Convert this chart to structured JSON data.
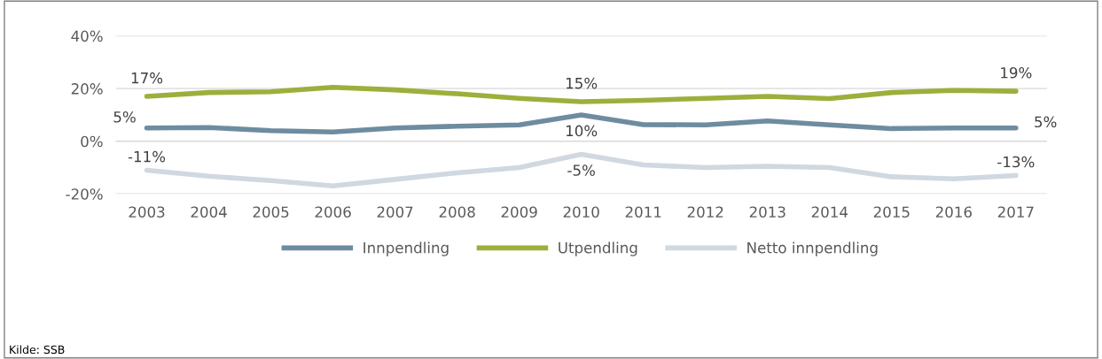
{
  "chart_data": {
    "type": "line",
    "categories": [
      "2003",
      "2004",
      "2005",
      "2006",
      "2007",
      "2008",
      "2009",
      "2010",
      "2011",
      "2012",
      "2013",
      "2014",
      "2015",
      "2016",
      "2017"
    ],
    "series": [
      {
        "name": "Innpendling",
        "color": "#6e8ca0",
        "values": [
          5,
          5.2,
          4,
          3.5,
          5,
          5.7,
          6.2,
          10,
          6.3,
          6.2,
          7.7,
          6.2,
          4.8,
          5,
          5
        ],
        "value_labels": [
          "5%",
          null,
          null,
          null,
          null,
          null,
          null,
          "10%",
          null,
          null,
          null,
          null,
          null,
          null,
          "5%"
        ]
      },
      {
        "name": "Utpendling",
        "color": "#9bb03c",
        "values": [
          17,
          18.5,
          18.8,
          20.5,
          19.5,
          18,
          16.3,
          15,
          15.5,
          16.3,
          17,
          16.2,
          18.5,
          19.3,
          19
        ],
        "value_labels": [
          "17%",
          null,
          null,
          null,
          null,
          null,
          null,
          "15%",
          null,
          null,
          null,
          null,
          null,
          null,
          "19%"
        ]
      },
      {
        "name": "Netto innpendling",
        "color": "#d0d8e0",
        "values": [
          -11,
          -13.3,
          -15,
          -17,
          -14.5,
          -12,
          -10,
          -5,
          -9,
          -10,
          -9.5,
          -10,
          -13.5,
          -14.3,
          -13
        ],
        "value_labels": [
          "-11%",
          null,
          null,
          null,
          null,
          null,
          null,
          "-5%",
          null,
          null,
          null,
          null,
          null,
          null,
          "-13%"
        ]
      }
    ],
    "ylim": [
      -20,
      40
    ],
    "yticks": [
      {
        "value": -20,
        "label": "-20%"
      },
      {
        "value": 0,
        "label": "0%"
      },
      {
        "value": 20,
        "label": "20%"
      },
      {
        "value": 40,
        "label": "40%"
      }
    ],
    "grid": "y",
    "legend": "bottom",
    "marker": "none",
    "line_style": "solid",
    "annotations": [
      "Kilde: SSB"
    ]
  }
}
